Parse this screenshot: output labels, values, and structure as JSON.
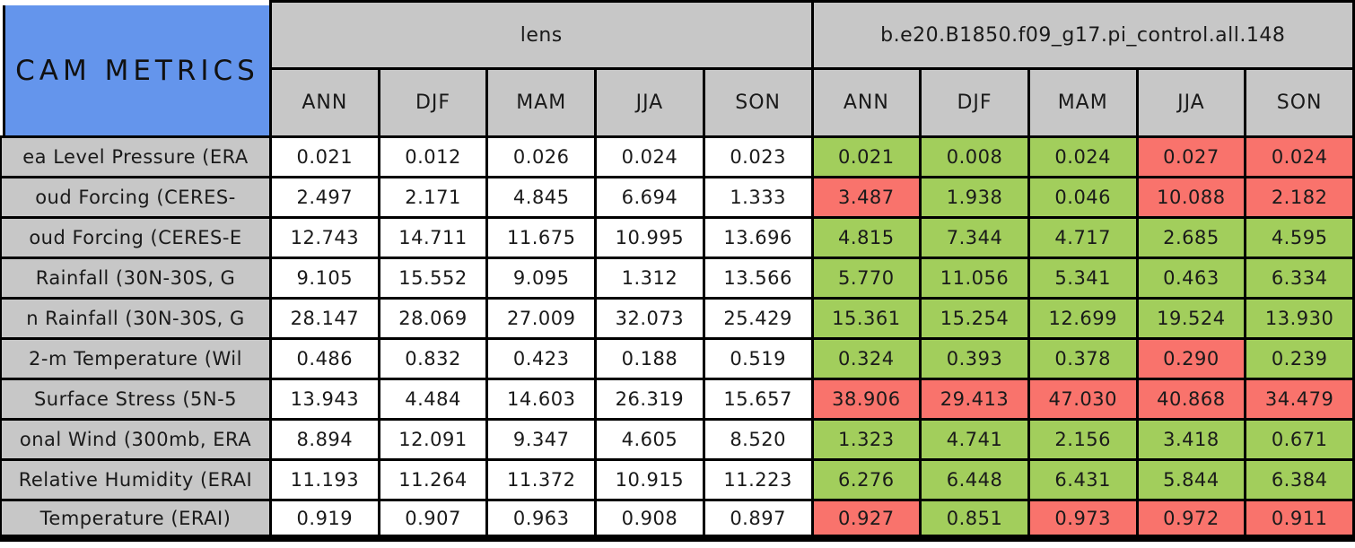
{
  "chart_data": {
    "type": "table",
    "title": "CAM METRICS",
    "groups": [
      {
        "label": "lens",
        "columns": [
          "ANN",
          "DJF",
          "MAM",
          "JJA",
          "SON"
        ]
      },
      {
        "label": "b.e20.B1850.f09_g17.pi_control.all.148",
        "columns": [
          "ANN",
          "DJF",
          "MAM",
          "JJA",
          "SON"
        ]
      }
    ],
    "rows": [
      {
        "label": "ea Level Pressure (ERA",
        "lens": [
          "0.021",
          "0.012",
          "0.026",
          "0.024",
          "0.023"
        ],
        "control": [
          "0.021",
          "0.008",
          "0.024",
          "0.027",
          "0.024"
        ],
        "control_status": [
          "good",
          "good",
          "good",
          "bad",
          "bad"
        ]
      },
      {
        "label": "oud Forcing (CERES-",
        "lens": [
          "2.497",
          "2.171",
          "4.845",
          "6.694",
          "1.333"
        ],
        "control": [
          "3.487",
          "1.938",
          "0.046",
          "10.088",
          "2.182"
        ],
        "control_status": [
          "bad",
          "good",
          "good",
          "bad",
          "bad"
        ]
      },
      {
        "label": "oud Forcing (CERES-E",
        "lens": [
          "12.743",
          "14.711",
          "11.675",
          "10.995",
          "13.696"
        ],
        "control": [
          "4.815",
          "7.344",
          "4.717",
          "2.685",
          "4.595"
        ],
        "control_status": [
          "good",
          "good",
          "good",
          "good",
          "good"
        ]
      },
      {
        "label": "Rainfall (30N-30S, G",
        "lens": [
          "9.105",
          "15.552",
          "9.095",
          "1.312",
          "13.566"
        ],
        "control": [
          "5.770",
          "11.056",
          "5.341",
          "0.463",
          "6.334"
        ],
        "control_status": [
          "good",
          "good",
          "good",
          "good",
          "good"
        ]
      },
      {
        "label": "n Rainfall (30N-30S, G",
        "lens": [
          "28.147",
          "28.069",
          "27.009",
          "32.073",
          "25.429"
        ],
        "control": [
          "15.361",
          "15.254",
          "12.699",
          "19.524",
          "13.930"
        ],
        "control_status": [
          "good",
          "good",
          "good",
          "good",
          "good"
        ]
      },
      {
        "label": "2-m Temperature (Wil",
        "lens": [
          "0.486",
          "0.832",
          "0.423",
          "0.188",
          "0.519"
        ],
        "control": [
          "0.324",
          "0.393",
          "0.378",
          "0.290",
          "0.239"
        ],
        "control_status": [
          "good",
          "good",
          "good",
          "bad",
          "good"
        ]
      },
      {
        "label": "Surface Stress (5N-5",
        "lens": [
          "13.943",
          "4.484",
          "14.603",
          "26.319",
          "15.657"
        ],
        "control": [
          "38.906",
          "29.413",
          "47.030",
          "40.868",
          "34.479"
        ],
        "control_status": [
          "bad",
          "bad",
          "bad",
          "bad",
          "bad"
        ]
      },
      {
        "label": "onal Wind (300mb, ERA",
        "lens": [
          "8.894",
          "12.091",
          "9.347",
          "4.605",
          "8.520"
        ],
        "control": [
          "1.323",
          "4.741",
          "2.156",
          "3.418",
          "0.671"
        ],
        "control_status": [
          "good",
          "good",
          "good",
          "good",
          "good"
        ]
      },
      {
        "label": "Relative Humidity (ERAI",
        "lens": [
          "11.193",
          "11.264",
          "11.372",
          "10.915",
          "11.223"
        ],
        "control": [
          "6.276",
          "6.448",
          "6.431",
          "5.844",
          "6.384"
        ],
        "control_status": [
          "good",
          "good",
          "good",
          "good",
          "good"
        ]
      },
      {
        "label": "Temperature (ERAI)",
        "lens": [
          "0.919",
          "0.907",
          "0.963",
          "0.908",
          "0.897"
        ],
        "control": [
          "0.927",
          "0.851",
          "0.973",
          "0.972",
          "0.911"
        ],
        "control_status": [
          "bad",
          "good",
          "bad",
          "bad",
          "bad"
        ]
      }
    ],
    "status_colors": {
      "good": "#a2ce5c",
      "bad": "#f9736c"
    }
  },
  "colors": {
    "title_bg": "#6495ec",
    "header_bg": "#c7c7c7",
    "lens_cell_bg": "#ffffff",
    "good": "#a2ce5c",
    "bad": "#f9736c",
    "border": "#000000"
  }
}
